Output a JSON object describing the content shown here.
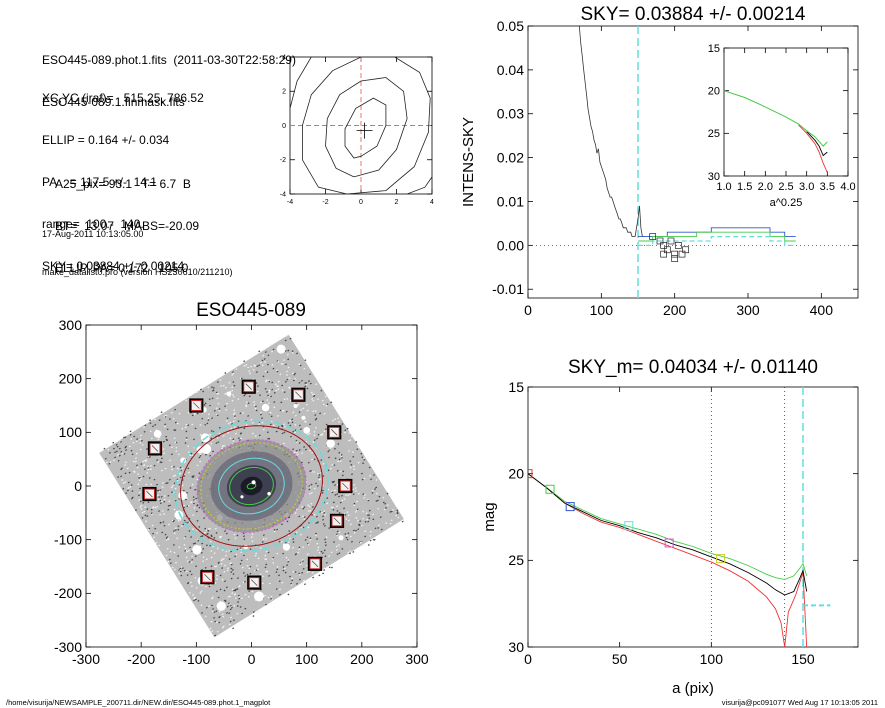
{
  "info": {
    "fits_line": "ESO445-089.phot.1.fits  (2011-03-30T22:58:29)",
    "mask_line": "ESO445-089.1.finmask.fits",
    "xcyc": "XC,YC (iraf)=   515.25, 786.52",
    "ellip": "ELLIP = 0.164 +/- 0.034",
    "pa": "PA    = 117.5 +/-  14.1",
    "range": "range=  100.-  140.",
    "sky": "SKY= 0.03884 +/- 0.00214",
    "a25": "A25_pix= 93.1   T= 6.7  B",
    "bt": "BT=  13.07   MABS=-20.09",
    "ellip_pa": "ELLIP, PA= 0.172   105.0",
    "date": "17-Aug-2011 10:13:05.00",
    "program": "make_datalist0.pro (version HS230610/211210)"
  },
  "footer": {
    "path": "/home/visurija/NEWSAMPLE_200711.dir/NEW.dir/ESO445-089.phot.1_magplot",
    "user": "visurija@pc091077  Wed Aug 17 10:13:05 2011"
  },
  "colors": {
    "cyan": "#66dddd",
    "blue": "#3355cc",
    "green": "#44cc44",
    "red": "#ee3333",
    "dark_red": "#991111",
    "magenta": "#dd55dd",
    "yellow": "#cccc33",
    "grey": "#999999"
  },
  "chart_data": [
    {
      "type": "line",
      "title": "",
      "xlim": [
        -4,
        4
      ],
      "ylim": [
        -4,
        4
      ],
      "x_ticks": [
        -4,
        -2,
        0,
        2,
        4
      ],
      "y_ticks": [
        -4,
        -2,
        0,
        2,
        4
      ],
      "x_tick_labels": [
        "-4",
        "-2",
        "0",
        "2",
        "4"
      ],
      "y_tick_labels": [
        "-4",
        "-2",
        "0",
        "2",
        "4"
      ],
      "contour_levels": [
        [
          [
            0.0,
            -1.8
          ],
          [
            0.9,
            -1.2
          ],
          [
            1.4,
            0.0
          ],
          [
            1.4,
            1.2
          ],
          [
            0.7,
            1.6
          ],
          [
            -0.3,
            1.0
          ],
          [
            -0.9,
            -0.2
          ],
          [
            -0.9,
            -1.2
          ],
          [
            -0.4,
            -1.9
          ],
          [
            0.0,
            -1.8
          ]
        ],
        [
          [
            -0.4,
            -3.0
          ],
          [
            1.0,
            -2.6
          ],
          [
            2.0,
            -1.4
          ],
          [
            2.6,
            0.4
          ],
          [
            2.4,
            2.0
          ],
          [
            1.4,
            2.8
          ],
          [
            0.0,
            2.6
          ],
          [
            -1.2,
            1.8
          ],
          [
            -1.9,
            0.4
          ],
          [
            -2.0,
            -1.2
          ],
          [
            -1.4,
            -2.5
          ],
          [
            -0.4,
            -3.0
          ]
        ],
        [
          [
            -0.8,
            -4.0
          ],
          [
            1.4,
            -3.8
          ],
          [
            3.0,
            -2.4
          ],
          [
            3.8,
            -0.4
          ],
          [
            3.9,
            1.6
          ],
          [
            3.3,
            3.1
          ],
          [
            1.9,
            4.0
          ],
          [
            0.0,
            4.0
          ],
          [
            -1.6,
            3.2
          ],
          [
            -2.8,
            1.8
          ],
          [
            -3.3,
            0.0
          ],
          [
            -3.3,
            -2.0
          ],
          [
            -2.4,
            -3.6
          ],
          [
            -0.8,
            -4.0
          ]
        ],
        [
          [
            -4.0,
            1.0
          ],
          [
            -3.6,
            2.6
          ],
          [
            -2.8,
            4.0
          ]
        ],
        [
          [
            2.6,
            -4.0
          ],
          [
            3.6,
            -3.6
          ],
          [
            4.0,
            -3.0
          ]
        ]
      ],
      "center": [
        0.2,
        -0.3
      ]
    },
    {
      "type": "line",
      "title": "SKY= 0.03884 +/- 0.00214",
      "ylabel": "INTENS-SKY",
      "xlim": [
        0,
        450
      ],
      "ylim": [
        -0.012,
        0.05
      ],
      "x_ticks": [
        0,
        100,
        200,
        300,
        400
      ],
      "y_ticks": [
        -0.01,
        0.0,
        0.01,
        0.02,
        0.03,
        0.04,
        0.05
      ],
      "x_tick_labels": [
        "0",
        "100",
        "200",
        "300",
        "400"
      ],
      "y_tick_labels": [
        "-0.01",
        "0.00",
        "0.01",
        "0.02",
        "0.03",
        "0.04",
        "0.05"
      ],
      "sky_line_x": 150,
      "profile": {
        "x": [
          70,
          72,
          74,
          76,
          78,
          80,
          82,
          84,
          86,
          88,
          90,
          92,
          94,
          96,
          98,
          100,
          102,
          104,
          106,
          108,
          110,
          112,
          114,
          116,
          118,
          120,
          122,
          124,
          126,
          128,
          130,
          132,
          134,
          136,
          138,
          140,
          142,
          144,
          146,
          148,
          150,
          152,
          154,
          156,
          158,
          160
        ],
        "y": [
          0.05,
          0.046,
          0.043,
          0.04,
          0.037,
          0.034,
          0.031,
          0.029,
          0.027,
          0.026,
          0.024,
          0.023,
          0.021,
          0.022,
          0.019,
          0.018,
          0.017,
          0.016,
          0.015,
          0.013,
          0.012,
          0.011,
          0.011,
          0.01,
          0.009,
          0.008,
          0.007,
          0.006,
          0.006,
          0.005,
          0.004,
          0.004,
          0.004,
          0.003,
          0.003,
          0.003,
          0.002,
          0.002,
          0.002,
          0.004,
          0.006,
          0.009,
          0.004,
          0.002,
          0.002,
          0.002
        ]
      },
      "step_blue": {
        "x": [
          150,
          170,
          190,
          210,
          230,
          250,
          270,
          290,
          310,
          330,
          350,
          365
        ],
        "y": [
          0.002,
          0.002,
          0.003,
          0.003,
          0.003,
          0.004,
          0.004,
          0.004,
          0.004,
          0.003,
          0.002,
          0.002
        ]
      },
      "step_green": {
        "x": [
          150,
          170,
          190,
          210,
          230,
          250,
          270,
          290,
          310,
          330,
          350,
          365
        ],
        "y": [
          0.001,
          0.002,
          0.002,
          0.002,
          0.003,
          0.003,
          0.003,
          0.003,
          0.003,
          0.002,
          0.001,
          0.001
        ]
      },
      "step_cyan": {
        "x": [
          150,
          170,
          190,
          210,
          230,
          250,
          270,
          290,
          310,
          330,
          350,
          365
        ],
        "y": [
          0.0,
          0.001,
          0.001,
          0.001,
          0.001,
          0.002,
          0.002,
          0.002,
          0.002,
          0.001,
          0.0,
          0.0
        ]
      },
      "squares": {
        "x": [
          170,
          180,
          185,
          190,
          195,
          200,
          205,
          210,
          215,
          185,
          200
        ],
        "y": [
          0.002,
          0.001,
          0.0,
          -0.001,
          0.001,
          -0.002,
          0.0,
          -0.002,
          -0.001,
          -0.002,
          -0.003
        ]
      },
      "inset": {
        "xlabel": "a^0.25",
        "xlim": [
          1.0,
          4.0
        ],
        "ylim": [
          15,
          30
        ],
        "x_ticks": [
          1.0,
          1.5,
          2.0,
          2.5,
          3.0,
          3.5,
          4.0
        ],
        "x_tick_labels": [
          "1.0",
          "1.5",
          "2.0",
          "2.5",
          "3.0",
          "3.5",
          "4.0"
        ],
        "y_ticks": [
          15,
          20,
          25,
          30
        ],
        "y_tick_labels": [
          "15",
          "20",
          "25",
          "30"
        ],
        "green": {
          "x": [
            1.0,
            1.5,
            2.0,
            2.5,
            2.8,
            3.0,
            3.2,
            3.4,
            3.5
          ],
          "y": [
            20.0,
            20.8,
            21.9,
            23.1,
            23.9,
            24.7,
            25.4,
            26.5,
            26.0
          ]
        },
        "red": {
          "x": [
            2.8,
            3.0,
            3.2,
            3.3,
            3.4,
            3.5
          ],
          "y": [
            24.0,
            25.0,
            26.2,
            27.2,
            28.5,
            29.6
          ]
        },
        "black": {
          "x": [
            3.0,
            3.2,
            3.3,
            3.4,
            3.5
          ],
          "y": [
            24.8,
            25.8,
            26.5,
            27.6,
            27.2
          ]
        }
      }
    },
    {
      "type": "scatter",
      "title": "ESO445-089",
      "xlim": [
        -300,
        300
      ],
      "ylim": [
        -300,
        300
      ],
      "x_ticks": [
        -300,
        -200,
        -100,
        0,
        100,
        200,
        300
      ],
      "y_ticks": [
        -300,
        -200,
        -100,
        0,
        100,
        200,
        300
      ],
      "x_tick_labels": [
        "-300",
        "-200",
        "-100",
        "0",
        "100",
        "200",
        "300"
      ],
      "y_tick_labels": [
        "-300",
        "-200",
        "-100",
        "0",
        "100",
        "200",
        "300"
      ],
      "sky_boxes": {
        "x": [
          -5,
          85,
          150,
          170,
          155,
          115,
          5,
          -80,
          -185,
          -175,
          -100
        ],
        "y": [
          185,
          170,
          100,
          0,
          -65,
          -145,
          -180,
          -170,
          -15,
          70,
          150
        ]
      },
      "ellipse_radii": [
        140,
        130,
        100,
        93,
        60,
        40
      ],
      "pa": 105.0,
      "ellip": 0.172
    },
    {
      "type": "line",
      "title": "SKY_m=  0.04034 +/- 0.01140",
      "xlabel": "a (pix)",
      "ylabel": "mag",
      "xlim": [
        0,
        180
      ],
      "ylim": [
        15,
        30
      ],
      "x_ticks": [
        0,
        50,
        100,
        150
      ],
      "y_ticks": [
        15,
        20,
        25,
        30
      ],
      "x_tick_labels": [
        "0",
        "50",
        "100",
        "150"
      ],
      "y_tick_labels": [
        "15",
        "20",
        "25",
        "30"
      ],
      "vlines_dotted": [
        100,
        140
      ],
      "vline_sky": 150,
      "black": {
        "x": [
          0,
          10,
          20,
          30,
          40,
          50,
          60,
          70,
          80,
          90,
          100,
          110,
          120,
          130,
          135,
          140,
          145,
          148,
          150,
          152
        ],
        "y": [
          20.0,
          20.8,
          21.7,
          22.2,
          22.7,
          23.0,
          23.4,
          23.7,
          24.1,
          24.4,
          24.8,
          25.2,
          25.7,
          26.3,
          26.7,
          27.0,
          26.8,
          26.1,
          25.6,
          26.8
        ]
      },
      "green": {
        "x": [
          0,
          10,
          20,
          30,
          40,
          50,
          60,
          70,
          80,
          90,
          100,
          110,
          120,
          130,
          135,
          140,
          145,
          148,
          150,
          152
        ],
        "y": [
          20.0,
          20.8,
          21.6,
          22.1,
          22.6,
          22.9,
          23.2,
          23.5,
          23.9,
          24.2,
          24.6,
          24.9,
          25.3,
          25.8,
          26.0,
          26.1,
          25.9,
          25.5,
          25.2,
          25.9
        ]
      },
      "red": {
        "x": [
          0,
          10,
          20,
          30,
          40,
          50,
          60,
          70,
          80,
          90,
          100,
          110,
          120,
          130,
          135,
          138,
          140,
          142,
          146,
          150,
          152
        ],
        "y": [
          20.0,
          20.8,
          21.7,
          22.3,
          22.8,
          23.1,
          23.5,
          23.9,
          24.3,
          24.7,
          25.1,
          25.6,
          26.2,
          27.1,
          27.8,
          28.6,
          30.0,
          28.0,
          27.0,
          25.7,
          30.0
        ]
      },
      "cyan_step": {
        "x": [
          150,
          155,
          160,
          165
        ],
        "y": [
          27.6,
          27.6,
          27.6,
          27.6
        ]
      },
      "markers": {
        "x": [
          0,
          12,
          23,
          55,
          77,
          105
        ],
        "y": [
          20.0,
          20.9,
          21.9,
          23.0,
          24.0,
          24.9
        ]
      }
    }
  ]
}
